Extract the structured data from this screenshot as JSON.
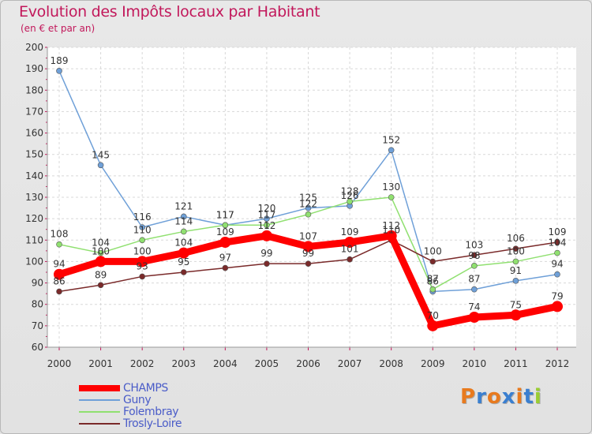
{
  "chart_data": {
    "type": "line",
    "title": "Evolution des Impôts locaux par Habitant",
    "subtitle": "(en € et par an)",
    "categories": [
      "2000",
      "2001",
      "2002",
      "2003",
      "2004",
      "2005",
      "2006",
      "2007",
      "2008",
      "2009",
      "2010",
      "2011",
      "2012"
    ],
    "y_ticks": [
      "60",
      "70",
      "80",
      "90",
      "100",
      "110",
      "120",
      "130",
      "140",
      "150",
      "160",
      "170",
      "180",
      "190",
      "200"
    ],
    "ylim": [
      60,
      200
    ],
    "series": [
      {
        "name": "CHAMPS",
        "color": "#ff0000",
        "values": [
          94,
          100,
          100,
          104,
          109,
          112,
          107,
          109,
          112,
          70,
          74,
          75,
          79
        ],
        "labels": [
          "94",
          "100",
          "100",
          "104",
          "109",
          "112",
          "107",
          "109",
          "112",
          "70",
          "74",
          "75",
          "79"
        ]
      },
      {
        "name": "Guny",
        "color": "#6fa0d8",
        "values": [
          189,
          145,
          116,
          121,
          117,
          120,
          125,
          126,
          152,
          86,
          87,
          91,
          94
        ],
        "labels": [
          "189",
          "145",
          "116",
          "121",
          "117",
          "120",
          "125",
          "126",
          "152",
          "86",
          "87",
          "91",
          "94"
        ]
      },
      {
        "name": "Folembray",
        "color": "#90e070",
        "values": [
          108,
          104,
          110,
          114,
          117,
          117,
          122,
          128,
          130,
          87,
          98,
          100,
          104
        ],
        "labels": [
          "108",
          "104",
          "110",
          "114",
          "117",
          "117",
          "122",
          "128",
          "130",
          "87",
          "98",
          "100",
          "104"
        ]
      },
      {
        "name": "Trosly-Loire",
        "color": "#7a2a2a",
        "values": [
          86,
          89,
          93,
          95,
          97,
          99,
          99,
          101,
          110,
          100,
          103,
          106,
          109
        ],
        "labels": [
          "86",
          "89",
          "93",
          "95",
          "97",
          "99",
          "99",
          "101",
          "110",
          "100",
          "103",
          "106",
          "109"
        ]
      }
    ]
  },
  "logo": {
    "letters": [
      "P",
      "r",
      "o",
      "x",
      "i",
      "t",
      "i"
    ],
    "colors": [
      "#e87a1e",
      "#3a7fd0",
      "#e87a1e",
      "#3a7fd0",
      "#e87a1e",
      "#3a7fd0",
      "#9acd32"
    ]
  }
}
